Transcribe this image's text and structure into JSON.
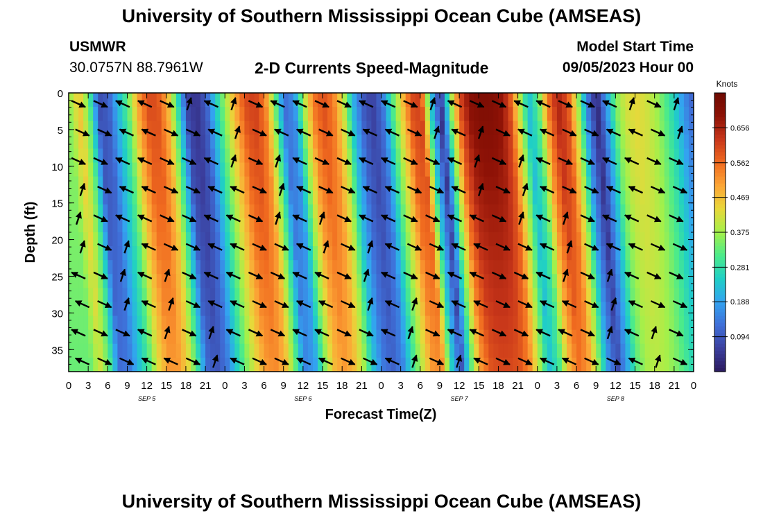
{
  "title": "University of Southern Mississippi Ocean Cube (AMSEAS)",
  "title_repeat": "University of Southern Mississippi Ocean Cube (AMSEAS)",
  "station": {
    "name": "USMWR",
    "coords": "30.0757N  88.7961W"
  },
  "plot_title": "2-D Currents Speed-Magnitude",
  "model_start": {
    "label": "Model Start Time",
    "value": "09/05/2023 Hour 00"
  },
  "chart_data": {
    "type": "heatmap",
    "title": "2-D Currents Speed-Magnitude",
    "xlabel": "Forecast Time(Z)",
    "ylabel": "Depth (ft)",
    "x_ticks": [
      "0",
      "3",
      "6",
      "9",
      "12",
      "15",
      "18",
      "21",
      "0",
      "3",
      "6",
      "9",
      "12",
      "15",
      "18",
      "21",
      "0",
      "3",
      "6",
      "9",
      "12",
      "15",
      "18",
      "21",
      "0",
      "3",
      "6",
      "9",
      "12",
      "15",
      "18",
      "21",
      "0"
    ],
    "x_range_hours": [
      0,
      96
    ],
    "date_labels": [
      {
        "label": "SEP 5",
        "hour": 12
      },
      {
        "label": "SEP 6",
        "hour": 36
      },
      {
        "label": "SEP 7",
        "hour": 60
      },
      {
        "label": "SEP 8",
        "hour": 84
      }
    ],
    "y_ticks": [
      "0",
      "5",
      "10",
      "15",
      "20",
      "25",
      "30",
      "35"
    ],
    "y_range_ft": [
      0,
      38
    ],
    "colorbar": {
      "label": "Knots",
      "range": [
        0,
        0.75
      ],
      "ticks": [
        "0.656",
        "0.562",
        "0.469",
        "0.375",
        "0.281",
        "0.188",
        "0.094"
      ],
      "colors": [
        "#2b1a5e",
        "#3b3f9e",
        "#3f6fd8",
        "#33a3f0",
        "#1fcfc6",
        "#4ceb8a",
        "#a4f04a",
        "#e8d83a",
        "#fca636",
        "#f06a1f",
        "#c8361a",
        "#8e1206",
        "#6e0a02"
      ]
    },
    "speed_profile_hours": [
      0,
      1.5,
      3,
      4.5,
      6,
      7.5,
      9,
      10.5,
      12,
      13.5,
      15,
      16.5,
      18,
      19.5,
      21,
      22.5,
      24,
      25.5,
      27,
      28.5,
      30,
      31.5,
      33,
      34.5,
      36,
      37.5,
      39,
      40.5,
      42,
      43.5,
      45,
      46.5,
      48,
      49.5,
      51,
      52.5,
      54,
      55.5,
      57,
      58.5,
      60,
      61.5,
      63,
      64.5,
      66,
      67.5,
      69,
      70.5,
      72,
      73.5,
      75,
      76.5,
      78,
      79.5,
      81,
      82.5,
      84,
      85.5,
      87,
      88.5,
      90,
      91.5,
      93,
      94.5,
      96
    ],
    "speed_profile_knots": [
      0.36,
      0.47,
      0.33,
      0.08,
      0.1,
      0.22,
      0.33,
      0.5,
      0.6,
      0.6,
      0.5,
      0.3,
      0.07,
      0.04,
      0.1,
      0.25,
      0.38,
      0.5,
      0.6,
      0.62,
      0.55,
      0.35,
      0.12,
      0.16,
      0.38,
      0.55,
      0.6,
      0.55,
      0.42,
      0.22,
      0.1,
      0.06,
      0.12,
      0.3,
      0.45,
      0.6,
      0.62,
      0.25,
      0.03,
      0.35,
      0.6,
      0.7,
      0.72,
      0.72,
      0.7,
      0.62,
      0.42,
      0.22,
      0.32,
      0.55,
      0.66,
      0.6,
      0.4,
      0.15,
      0.02,
      0.18,
      0.35,
      0.42,
      0.44,
      0.42,
      0.38,
      0.32,
      0.25,
      0.16,
      0.1
    ]
  }
}
